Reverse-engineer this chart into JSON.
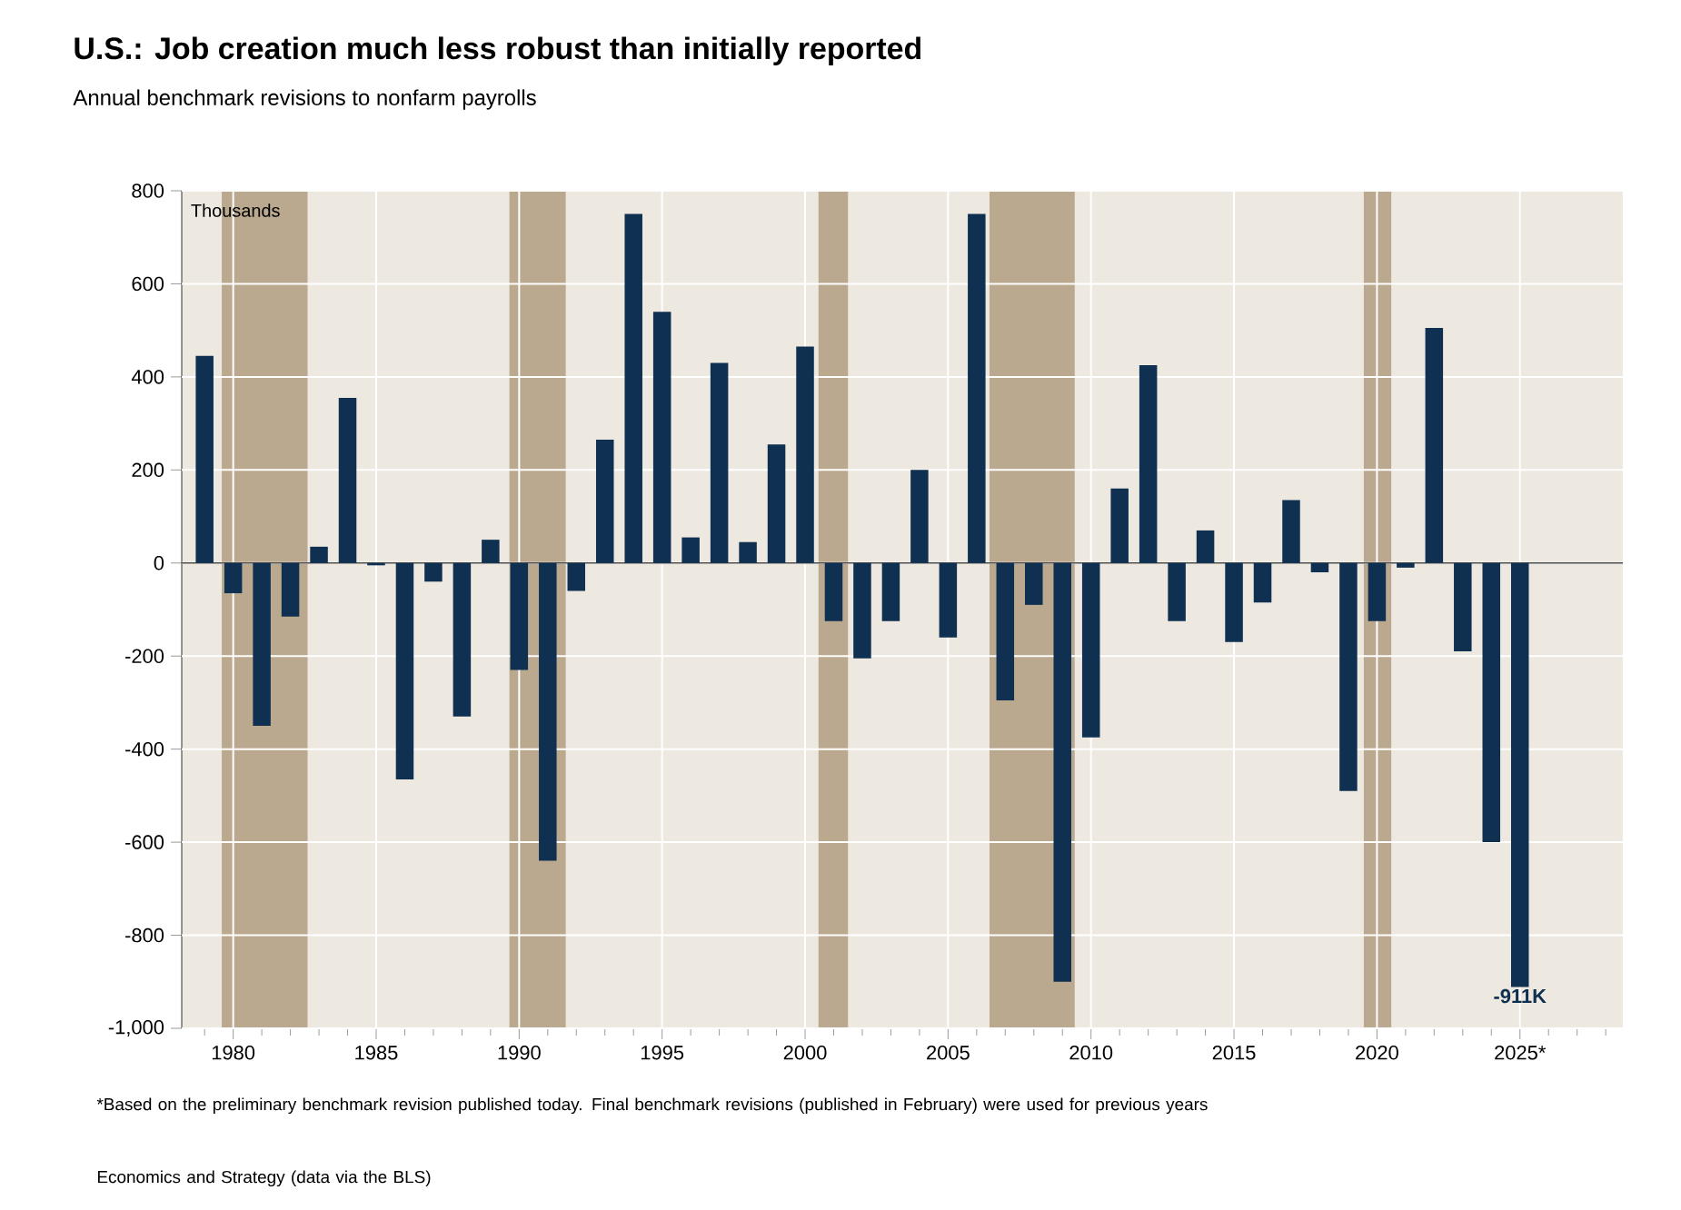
{
  "chart_data": {
    "type": "bar",
    "title": "U.S.: Job creation much less robust than initially reported",
    "subtitle": "Annual benchmark revisions to nonfarm payrolls",
    "ylabel": "Thousands",
    "x": [
      1979,
      1980,
      1981,
      1982,
      1983,
      1984,
      1985,
      1986,
      1987,
      1988,
      1989,
      1990,
      1991,
      1992,
      1993,
      1994,
      1995,
      1996,
      1997,
      1998,
      1999,
      2000,
      2001,
      2002,
      2003,
      2004,
      2005,
      2006,
      2007,
      2008,
      2009,
      2010,
      2011,
      2012,
      2013,
      2014,
      2015,
      2016,
      2017,
      2018,
      2019,
      2020,
      2021,
      2022,
      2023,
      2024,
      2025
    ],
    "values": [
      445,
      -65,
      -350,
      -115,
      35,
      355,
      -5,
      -465,
      -40,
      -330,
      50,
      -230,
      -640,
      -60,
      265,
      750,
      540,
      55,
      430,
      45,
      255,
      465,
      -125,
      -205,
      -125,
      200,
      -160,
      750,
      -295,
      -90,
      -900,
      -375,
      160,
      425,
      -125,
      70,
      -170,
      -85,
      135,
      -20,
      -490,
      -125,
      -10,
      505,
      -190,
      -600,
      -911
    ],
    "color": "#0f3050",
    "xlim": [
      1978.2,
      2028.6
    ],
    "xticks": [
      1980,
      1985,
      1990,
      1995,
      2000,
      2005,
      2010,
      2015,
      2020,
      {
        "value": 2025,
        "label": "2025*"
      },
      {
        "value": 1979,
        "label": null
      },
      {
        "value": 1981,
        "label": null
      },
      {
        "value": 1982,
        "label": null
      },
      {
        "value": 1983,
        "label": null
      },
      {
        "value": 1984,
        "label": null
      },
      {
        "value": 1986,
        "label": null
      },
      {
        "value": 1987,
        "label": null
      },
      {
        "value": 1988,
        "label": null
      },
      {
        "value": 1989,
        "label": null
      },
      {
        "value": 1991,
        "label": null
      },
      {
        "value": 1992,
        "label": null
      },
      {
        "value": 1993,
        "label": null
      },
      {
        "value": 1994,
        "label": null
      },
      {
        "value": 1996,
        "label": null
      },
      {
        "value": 1997,
        "label": null
      },
      {
        "value": 1998,
        "label": null
      },
      {
        "value": 1999,
        "label": null
      },
      {
        "value": 2001,
        "label": null
      },
      {
        "value": 2002,
        "label": null
      },
      {
        "value": 2003,
        "label": null
      },
      {
        "value": 2004,
        "label": null
      },
      {
        "value": 2006,
        "label": null
      },
      {
        "value": 2007,
        "label": null
      },
      {
        "value": 2008,
        "label": null
      },
      {
        "value": 2009,
        "label": null
      },
      {
        "value": 2011,
        "label": null
      },
      {
        "value": 2012,
        "label": null
      },
      {
        "value": 2013,
        "label": null
      },
      {
        "value": 2014,
        "label": null
      },
      {
        "value": 2016,
        "label": null
      },
      {
        "value": 2017,
        "label": null
      },
      {
        "value": 2018,
        "label": null
      },
      {
        "value": 2019,
        "label": null
      },
      {
        "value": 2021,
        "label": null
      },
      {
        "value": 2022,
        "label": null
      },
      {
        "value": 2023,
        "label": null
      },
      {
        "value": 2024,
        "label": null
      },
      {
        "value": 2026,
        "label": null
      },
      {
        "value": 2027,
        "label": null
      },
      {
        "value": 2028,
        "label": null
      }
    ],
    "ylim": [
      -1000,
      800
    ],
    "yticks": [
      {
        "value": -1000,
        "label": "-1,000"
      },
      -800,
      -600,
      -400,
      -200,
      0,
      200,
      400,
      600,
      800
    ],
    "grid": true,
    "bands": [
      {
        "axis": "x",
        "from": 1979.6,
        "to": 1982.6,
        "color": "#bba98f"
      },
      {
        "axis": "x",
        "from": 1989.66,
        "to": 1991.63,
        "color": "#bba98f"
      },
      {
        "axis": "x",
        "from": 2000.47,
        "to": 2001.5,
        "color": "#bba98f"
      },
      {
        "axis": "x",
        "from": 2006.45,
        "to": 2009.43,
        "color": "#bba98f"
      },
      {
        "axis": "x",
        "from": 2019.54,
        "to": 2020.5,
        "color": "#bba98f"
      }
    ],
    "annotations": [
      {
        "text": "-911K",
        "x": 2025,
        "y": -911
      },
      "*Based on the preliminary benchmark revision published today. Final benchmark revisions (published in February) were used for previous years",
      "Economics and Strategy (data via the BLS)"
    ]
  }
}
